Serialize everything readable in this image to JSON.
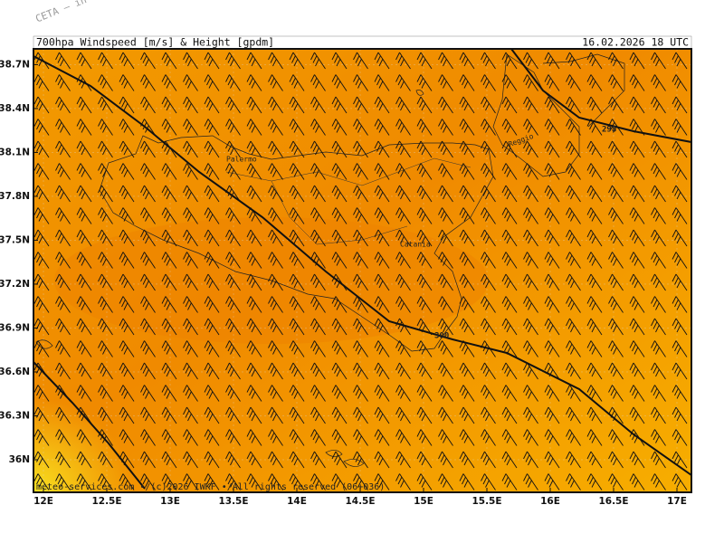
{
  "header": {
    "watermark": "CETA – in",
    "title": "700hpa_Windspeed_[m/s]_&_Height_[gpdm]",
    "valid": "16.02.2026_18_UTC"
  },
  "map": {
    "lat_ticks": [
      {
        "value": 38.7,
        "label": "38.7N"
      },
      {
        "value": 38.4,
        "label": "38.4N"
      },
      {
        "value": 38.1,
        "label": "38.1N"
      },
      {
        "value": 37.8,
        "label": "37.8N"
      },
      {
        "value": 37.5,
        "label": "37.5N"
      },
      {
        "value": 37.2,
        "label": "37.2N"
      },
      {
        "value": 36.9,
        "label": "36.9N"
      },
      {
        "value": 36.6,
        "label": "36.6N"
      },
      {
        "value": 36.3,
        "label": "36.3N"
      },
      {
        "value": 36,
        "label": "36N"
      }
    ],
    "lon_ticks": [
      {
        "value": 12,
        "label": "12E"
      },
      {
        "value": 12.5,
        "label": "12.5E"
      },
      {
        "value": 13,
        "label": "13E"
      },
      {
        "value": 13.5,
        "label": "13.5E"
      },
      {
        "value": 14,
        "label": "14E"
      },
      {
        "value": 14.5,
        "label": "14.5E"
      },
      {
        "value": 15,
        "label": "15E"
      },
      {
        "value": 15.5,
        "label": "15.5E"
      },
      {
        "value": 16,
        "label": "16E"
      },
      {
        "value": 16.5,
        "label": "16.5E"
      },
      {
        "value": 17,
        "label": "17E"
      }
    ],
    "places": [
      "Palermo",
      "Catania",
      "Reggio"
    ],
    "contour_labels": [
      "298",
      "300"
    ],
    "footer": "meteo-services.com •/(c)2026 IWKF •/All rights reserved (06+036)"
  }
}
